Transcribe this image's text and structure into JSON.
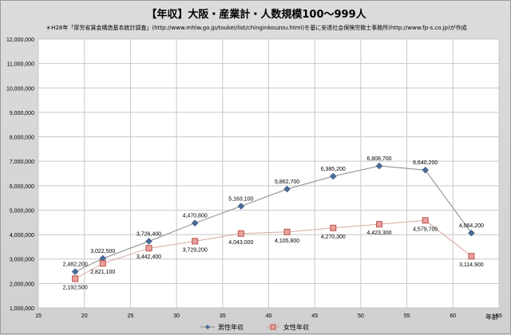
{
  "chart_data": {
    "type": "line",
    "title": "【年収】大阪・産業計・人数規模100～999人",
    "note": "＊H28年「厚労省賃金構造基本統計調査」(http://www.mhlw.go.jp/toukei/list/chinginkouzou.html)を基に安達社会保険労務士事務所(http://www.fp-s.co.jp)が作成",
    "xlabel": "年齢",
    "ylabel": "",
    "x": [
      19,
      22,
      27,
      32,
      37,
      42,
      47,
      52,
      57,
      62
    ],
    "xlim": [
      15,
      65
    ],
    "xticks": [
      "15",
      "20",
      "25",
      "30",
      "35",
      "40",
      "45",
      "50",
      "55",
      "60",
      "65"
    ],
    "ylim": [
      1000000,
      12000000
    ],
    "yticks": [
      "1,000,000",
      "2,000,000",
      "3,000,000",
      "4,000,000",
      "5,000,000",
      "6,000,000",
      "7,000,000",
      "8,000,000",
      "9,000,000",
      "10,000,000",
      "11,000,000",
      "12,000,000"
    ],
    "grid": true,
    "legend_position": "bottom",
    "series": [
      {
        "name": "男性年収",
        "color": "#4a6b9a",
        "marker": "diamond",
        "values": [
          2482200,
          3022500,
          3726400,
          4470800,
          5163100,
          5862700,
          6385200,
          6808700,
          6640200,
          4064200
        ],
        "labels": [
          "2,482,200",
          "3,022,500",
          "3,726,400",
          "4,470,800",
          "5,163,100",
          "5,862,700",
          "6,385,200",
          "6,808,700",
          "6,640,200",
          "4,064,200"
        ]
      },
      {
        "name": "女性年収",
        "color": "#c0504d",
        "marker": "square",
        "values": [
          2192500,
          2821100,
          3442400,
          3729200,
          4043000,
          4105800,
          4270300,
          4423300,
          4579700,
          3114900
        ],
        "labels": [
          "2,192,500",
          "2,821,100",
          "3,442,400",
          "3,729,200",
          "4,043,000",
          "4,105,800",
          "4,270,300",
          "4,423,300",
          "4,579,700",
          "3,114,900"
        ]
      }
    ]
  }
}
